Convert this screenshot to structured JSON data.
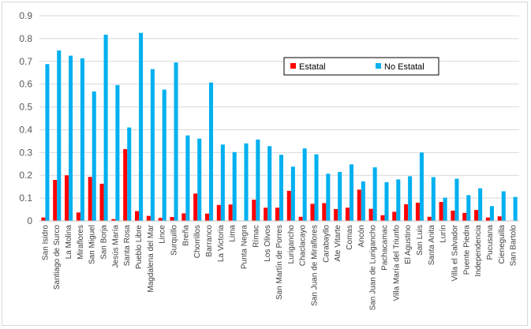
{
  "chart_data": {
    "type": "bar",
    "title": "",
    "xlabel": "",
    "ylabel": "",
    "ylim": [
      0,
      0.9
    ],
    "yticks": [
      0,
      0.1,
      0.2,
      0.3,
      0.4,
      0.5,
      0.6,
      0.7,
      0.8,
      0.9
    ],
    "grid": true,
    "legend": "top-right",
    "categories": [
      "San Isidro",
      "Santiago de Surco",
      "La Molina",
      "Miraflores",
      "San Miguel",
      "San Borja",
      "Jesús María",
      "Santa Rosa",
      "Pueblo Libre",
      "Magdalena del Mar",
      "Lince",
      "Surquillo",
      "Breña",
      "Chorrillos",
      "Barranco",
      "La Victoria",
      "Lima",
      "Punta Negra",
      "Rímac",
      "Los Olivos",
      "San Martín de Porres",
      "Lurigancho",
      "Chaclacayo",
      "San Juan de Miraflores",
      "Carabayllo",
      "Ate Vitarte",
      "Comas",
      "Ancón",
      "San Juan de Lurigancho",
      "Pachacamac",
      "Villa María del Triunfo",
      "El Agustino",
      "San Luis",
      "Santa Anita",
      "Lurín",
      "Villa el Salvador",
      "Puente Piedra",
      "Independencia",
      "Pucusana",
      "Cieneguilla",
      "San Bartolo"
    ],
    "series": [
      {
        "name": "Estatal",
        "color": "#ff0000",
        "values": [
          0.015,
          0.18,
          0.2,
          0.037,
          0.193,
          0.163,
          0.008,
          0.315,
          0.043,
          0.022,
          0.013,
          0.017,
          0.033,
          0.12,
          0.032,
          0.07,
          0.072,
          0.0,
          0.093,
          0.058,
          0.058,
          0.132,
          0.018,
          0.075,
          0.078,
          0.052,
          0.058,
          0.137,
          0.053,
          0.025,
          0.04,
          0.073,
          0.08,
          0.018,
          0.083,
          0.045,
          0.035,
          0.048,
          0.015,
          0.02,
          0.0
        ]
      },
      {
        "name": "No Estatal",
        "color": "#00b0f0",
        "values": [
          0.688,
          0.748,
          0.725,
          0.713,
          0.568,
          0.817,
          0.596,
          0.41,
          0.825,
          0.666,
          0.576,
          0.695,
          0.375,
          0.361,
          0.607,
          0.335,
          0.302,
          0.34,
          0.357,
          0.328,
          0.29,
          0.238,
          0.318,
          0.292,
          0.207,
          0.215,
          0.248,
          0.173,
          0.235,
          0.17,
          0.182,
          0.196,
          0.3,
          0.192,
          0.102,
          0.185,
          0.113,
          0.143,
          0.065,
          0.13,
          0.105
        ]
      }
    ]
  }
}
